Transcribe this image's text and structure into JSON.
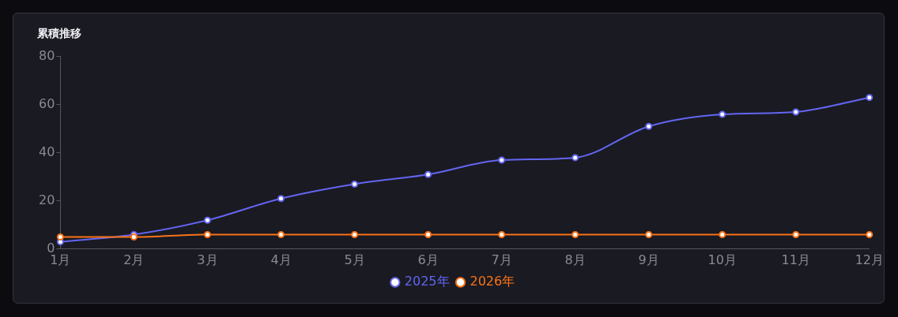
{
  "chart_data": {
    "type": "line",
    "title": "累積推移",
    "categories": [
      "1月",
      "2月",
      "3月",
      "4月",
      "5月",
      "6月",
      "7月",
      "8月",
      "9月",
      "10月",
      "11月",
      "12月"
    ],
    "series": [
      {
        "name": "2025年",
        "color": "#6366f1",
        "values": [
          3,
          6,
          12,
          21,
          27,
          31,
          37,
          38,
          51,
          56,
          57,
          63
        ]
      },
      {
        "name": "2026年",
        "color": "#f97316",
        "values": [
          5,
          5,
          6,
          6,
          6,
          6,
          6,
          6,
          6,
          6,
          6,
          6
        ]
      }
    ],
    "ylim": [
      0,
      80
    ],
    "yticks": [
      0,
      20,
      40,
      60,
      80
    ],
    "grid": false,
    "legend": "bottom",
    "marker": "circle",
    "line_style": "solid"
  }
}
